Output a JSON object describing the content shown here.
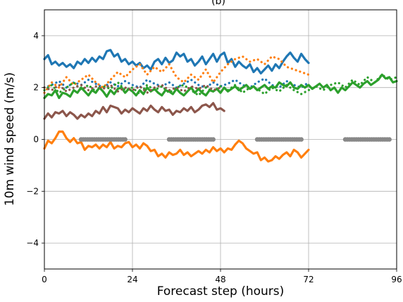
{
  "chart_data": {
    "type": "line",
    "title": "(b)",
    "xlabel": "Forecast step (hours)",
    "ylabel": "10m wind speed (m/s)",
    "xlim": [
      0,
      96
    ],
    "ylim": [
      -5,
      5
    ],
    "x_ticks": [
      0,
      24,
      48,
      72,
      96
    ],
    "y_ticks": [
      -4,
      -2,
      0,
      2,
      4
    ],
    "y_tick_labels": [
      "−4",
      "−2",
      "0",
      "2",
      "4"
    ],
    "grid": true,
    "legend": "none",
    "series": [
      {
        "color": "#1f77b4",
        "style": "solid",
        "width": 3.2,
        "x": [
          0,
          1,
          2,
          3,
          4,
          5,
          6,
          7,
          8,
          9,
          10,
          11,
          12,
          13,
          14,
          15,
          16,
          17,
          18,
          19,
          20,
          21,
          22,
          23,
          24,
          25,
          26,
          27,
          28,
          29,
          30,
          31,
          32,
          33,
          34,
          35,
          36,
          37,
          38,
          39,
          40,
          41,
          42,
          43,
          44,
          45,
          46,
          47,
          48,
          49,
          50,
          51,
          52,
          53,
          54,
          55,
          56,
          57,
          58,
          59,
          60,
          61,
          62,
          63,
          64,
          65,
          66,
          67,
          68,
          69,
          70,
          71,
          72
        ],
        "y": [
          3.1,
          3.25,
          2.9,
          3.0,
          2.85,
          2.95,
          2.8,
          2.9,
          2.75,
          3.0,
          2.9,
          3.1,
          2.95,
          3.15,
          3.0,
          3.2,
          3.1,
          3.4,
          3.45,
          3.2,
          3.3,
          3.0,
          3.1,
          2.9,
          3.0,
          2.85,
          2.95,
          2.75,
          2.85,
          2.7,
          3.0,
          3.1,
          2.9,
          3.15,
          2.95,
          3.05,
          3.35,
          3.2,
          3.3,
          3.0,
          3.1,
          2.85,
          3.0,
          3.2,
          2.9,
          3.1,
          3.3,
          3.0,
          3.25,
          3.35,
          2.95,
          3.1,
          2.8,
          3.0,
          2.85,
          2.75,
          2.9,
          2.6,
          2.75,
          2.55,
          2.7,
          2.85,
          2.65,
          2.9,
          2.75,
          3.0,
          3.2,
          3.35,
          3.15,
          3.0,
          3.3,
          3.1,
          2.95
        ]
      },
      {
        "color": "#1f77b4",
        "style": "dotted",
        "width": 3.2,
        "x": [
          0,
          2,
          4,
          6,
          8,
          10,
          12,
          14,
          16,
          18,
          20,
          22,
          24,
          26,
          28,
          30,
          32,
          34,
          36,
          38,
          40,
          42,
          44,
          46,
          48,
          50,
          52,
          54,
          56,
          58,
          60,
          62,
          64,
          66,
          68,
          70,
          72
        ],
        "y": [
          2.0,
          2.1,
          2.25,
          2.0,
          2.2,
          2.1,
          2.3,
          2.15,
          2.0,
          2.2,
          2.05,
          2.25,
          2.1,
          2.0,
          2.3,
          2.15,
          2.05,
          2.2,
          2.0,
          2.15,
          2.3,
          2.1,
          2.0,
          2.2,
          2.05,
          2.15,
          2.3,
          2.1,
          2.0,
          2.2,
          2.35,
          2.1,
          2.0,
          2.25,
          2.1,
          2.0,
          2.2
        ]
      },
      {
        "color": "#ff7f0e",
        "style": "dotted",
        "width": 3.2,
        "x": [
          0,
          2,
          4,
          6,
          8,
          10,
          12,
          14,
          16,
          18,
          20,
          22,
          24,
          26,
          28,
          30,
          32,
          34,
          36,
          38,
          40,
          42,
          44,
          46,
          48,
          50,
          52,
          54,
          56,
          58,
          60,
          62,
          64,
          66,
          68,
          70,
          72
        ],
        "y": [
          1.8,
          2.2,
          2.0,
          2.4,
          2.1,
          2.3,
          2.5,
          2.2,
          2.0,
          2.3,
          2.6,
          2.4,
          2.7,
          2.9,
          2.5,
          2.8,
          2.6,
          2.9,
          2.4,
          2.2,
          2.5,
          2.3,
          2.7,
          2.2,
          2.6,
          2.9,
          3.1,
          3.2,
          3.0,
          3.1,
          2.9,
          3.2,
          3.1,
          2.8,
          2.7,
          2.6,
          2.5
        ]
      },
      {
        "color": "#ff7f0e",
        "style": "solid",
        "width": 3.2,
        "x": [
          0,
          1,
          2,
          3,
          4,
          5,
          6,
          7,
          8,
          9,
          10,
          11,
          12,
          13,
          14,
          15,
          16,
          17,
          18,
          19,
          20,
          21,
          22,
          23,
          24,
          25,
          26,
          27,
          28,
          29,
          30,
          31,
          32,
          33,
          34,
          35,
          36,
          37,
          38,
          39,
          40,
          41,
          42,
          43,
          44,
          45,
          46,
          47,
          48,
          49,
          50,
          51,
          52,
          53,
          54,
          55,
          56,
          57,
          58,
          59,
          60,
          61,
          62,
          63,
          64,
          65,
          66,
          67,
          68,
          69,
          70,
          71,
          72
        ],
        "y": [
          -0.35,
          -0.05,
          -0.15,
          0.05,
          0.3,
          0.3,
          0.05,
          -0.1,
          0.05,
          -0.15,
          -0.1,
          -0.4,
          -0.25,
          -0.3,
          -0.2,
          -0.35,
          -0.2,
          -0.3,
          -0.1,
          -0.35,
          -0.25,
          -0.3,
          -0.15,
          -0.1,
          -0.3,
          -0.2,
          -0.35,
          -0.15,
          -0.25,
          -0.45,
          -0.4,
          -0.65,
          -0.55,
          -0.7,
          -0.5,
          -0.6,
          -0.55,
          -0.4,
          -0.6,
          -0.5,
          -0.65,
          -0.55,
          -0.45,
          -0.55,
          -0.4,
          -0.5,
          -0.3,
          -0.45,
          -0.35,
          -0.5,
          -0.35,
          -0.4,
          -0.2,
          -0.05,
          -0.15,
          -0.35,
          -0.45,
          -0.55,
          -0.5,
          -0.8,
          -0.7,
          -0.85,
          -0.8,
          -0.65,
          -0.75,
          -0.6,
          -0.5,
          -0.65,
          -0.4,
          -0.5,
          -0.7,
          -0.55,
          -0.4
        ]
      },
      {
        "color": "#2ca02c",
        "style": "dotted",
        "width": 3.2,
        "x": [
          0,
          2,
          4,
          6,
          8,
          10,
          12,
          14,
          16,
          18,
          20,
          22,
          24,
          26,
          28,
          30,
          32,
          34,
          36,
          38,
          40,
          42,
          44,
          46,
          48,
          50,
          52,
          54,
          56,
          58,
          60,
          62,
          64,
          66,
          68,
          70,
          72,
          74,
          76,
          78,
          80,
          82,
          84,
          86,
          88,
          90,
          92,
          94,
          96
        ],
        "y": [
          1.9,
          2.1,
          1.8,
          2.0,
          2.2,
          1.9,
          2.1,
          1.85,
          2.05,
          1.95,
          2.2,
          1.9,
          2.0,
          1.75,
          2.1,
          1.9,
          2.05,
          1.8,
          2.0,
          2.1,
          1.9,
          1.7,
          2.0,
          1.85,
          2.05,
          1.9,
          2.1,
          1.8,
          2.0,
          1.95,
          1.75,
          2.0,
          1.85,
          2.1,
          1.9,
          1.75,
          1.9,
          2.05,
          1.9,
          2.1,
          2.2,
          2.0,
          2.3,
          2.1,
          2.4,
          2.2,
          2.5,
          2.3,
          2.4
        ]
      },
      {
        "color": "#2ca02c",
        "style": "solid",
        "width": 3.2,
        "x": [
          0,
          1,
          2,
          3,
          4,
          5,
          6,
          7,
          8,
          9,
          10,
          11,
          12,
          13,
          14,
          15,
          16,
          17,
          18,
          19,
          20,
          21,
          22,
          23,
          24,
          25,
          26,
          27,
          28,
          29,
          30,
          31,
          32,
          33,
          34,
          35,
          36,
          37,
          38,
          39,
          40,
          41,
          42,
          43,
          44,
          45,
          46,
          47,
          48,
          49,
          50,
          51,
          52,
          53,
          54,
          55,
          56,
          57,
          58,
          59,
          60,
          61,
          62,
          63,
          64,
          65,
          66,
          67,
          68,
          69,
          70,
          71,
          72,
          73,
          74,
          75,
          76,
          77,
          78,
          79,
          80,
          81,
          82,
          83,
          84,
          85,
          86,
          87,
          88,
          89,
          90,
          91,
          92,
          93,
          94,
          95,
          96
        ],
        "y": [
          1.6,
          1.75,
          1.7,
          1.9,
          1.6,
          1.8,
          1.75,
          1.65,
          1.9,
          1.8,
          2.0,
          1.85,
          1.7,
          1.9,
          1.8,
          2.0,
          1.85,
          1.65,
          1.9,
          1.75,
          1.95,
          2.0,
          1.8,
          1.95,
          1.85,
          1.7,
          1.9,
          1.75,
          2.0,
          1.85,
          1.95,
          1.8,
          1.7,
          1.9,
          1.85,
          1.75,
          1.95,
          1.8,
          1.7,
          1.85,
          2.0,
          1.8,
          1.95,
          1.8,
          1.7,
          1.9,
          1.85,
          1.95,
          1.8,
          2.0,
          1.85,
          1.95,
          2.05,
          1.9,
          2.0,
          2.1,
          1.95,
          2.05,
          1.9,
          2.0,
          2.1,
          1.95,
          2.05,
          2.0,
          2.2,
          2.1,
          2.05,
          2.2,
          2.0,
          1.95,
          2.1,
          2.0,
          2.1,
          1.95,
          2.05,
          2.15,
          2.0,
          2.1,
          1.9,
          2.0,
          1.8,
          2.0,
          1.9,
          2.05,
          2.2,
          2.1,
          2.0,
          2.15,
          2.25,
          2.1,
          2.2,
          2.3,
          2.5,
          2.35,
          2.4,
          2.2,
          2.25
        ]
      },
      {
        "color": "#8c564b",
        "style": "dotted",
        "width": 3.2,
        "x": [
          0,
          2,
          4,
          6,
          8,
          10,
          12,
          14,
          16,
          18,
          20,
          22,
          24,
          26,
          28,
          30,
          32,
          34,
          36,
          38,
          40,
          42,
          44,
          46,
          48
        ],
        "y": [
          2.0,
          1.9,
          2.1,
          1.85,
          2.0,
          2.1,
          1.9,
          2.05,
          1.95,
          2.1,
          1.85,
          2.0,
          1.9,
          2.05,
          1.8,
          2.0,
          2.1,
          1.9,
          2.0,
          1.85,
          2.05,
          1.95,
          2.1,
          1.9,
          2.0
        ]
      },
      {
        "color": "#8c564b",
        "style": "solid",
        "width": 3.2,
        "x": [
          0,
          1,
          2,
          3,
          4,
          5,
          6,
          7,
          8,
          9,
          10,
          11,
          12,
          13,
          14,
          15,
          16,
          17,
          18,
          19,
          20,
          21,
          22,
          23,
          24,
          25,
          26,
          27,
          28,
          29,
          30,
          31,
          32,
          33,
          34,
          35,
          36,
          37,
          38,
          39,
          40,
          41,
          42,
          43,
          44,
          45,
          46,
          47,
          48,
          49
        ],
        "y": [
          0.8,
          1.0,
          0.85,
          1.05,
          1.0,
          1.1,
          0.9,
          1.05,
          0.95,
          0.8,
          0.95,
          0.85,
          1.0,
          0.9,
          1.1,
          1.0,
          1.25,
          1.05,
          1.3,
          1.25,
          1.2,
          1.0,
          1.15,
          1.05,
          1.2,
          1.1,
          1.0,
          1.2,
          1.1,
          1.3,
          1.15,
          1.05,
          1.25,
          1.1,
          1.15,
          0.95,
          1.1,
          1.05,
          1.2,
          1.1,
          1.25,
          1.05,
          1.15,
          1.3,
          1.35,
          1.25,
          1.4,
          1.15,
          1.2,
          1.1
        ]
      }
    ],
    "markers": {
      "color": "#888888",
      "y": 0,
      "segments": [
        [
          10,
          22
        ],
        [
          34,
          46
        ],
        [
          58,
          70
        ],
        [
          82,
          94
        ]
      ],
      "spacing": 0.6
    }
  }
}
